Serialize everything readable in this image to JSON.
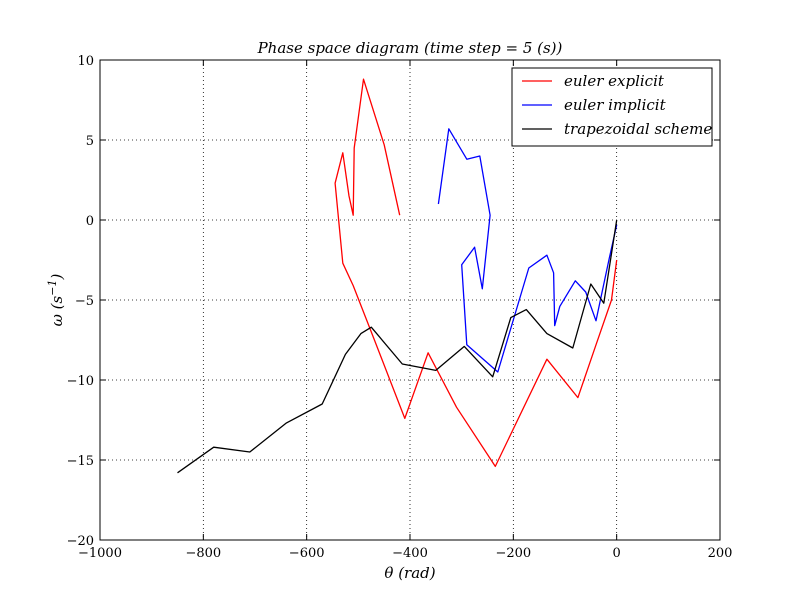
{
  "chart_data": {
    "type": "line",
    "title": "Phase space diagram (time step = 5 (s))",
    "xlabel": "θ (rad)",
    "ylabel": "ω (s",
    "ylabel_superscript": "−1",
    "ylabel_suffix": ")",
    "xlim": [
      -1000,
      200
    ],
    "ylim": [
      -20,
      10
    ],
    "xticks": [
      -1000,
      -800,
      -600,
      -400,
      -200,
      0,
      200
    ],
    "xtick_labels": [
      "−1000",
      "−800",
      "−600",
      "−400",
      "−200",
      "0",
      "200"
    ],
    "yticks": [
      -20,
      -15,
      -10,
      -5,
      0,
      5,
      10
    ],
    "ytick_labels": [
      "−20",
      "−15",
      "−10",
      "−5",
      "0",
      "5",
      "10"
    ],
    "grid": true,
    "legend_position": "top-right",
    "series": [
      {
        "name": "euler explicit",
        "color": "#ff0000",
        "x": [
          0,
          -10,
          -40,
          -75,
          -135,
          -235,
          -310,
          -365,
          -410,
          -470,
          -510,
          -530,
          -545,
          -530,
          -518,
          -510,
          -508,
          -490,
          -450,
          -420
        ],
        "y": [
          -2.5,
          -5.0,
          -7.8,
          -11.1,
          -8.7,
          -15.4,
          -11.7,
          -8.3,
          -12.4,
          -7.4,
          -4.1,
          -2.7,
          2.3,
          4.2,
          1.5,
          0.3,
          4.5,
          8.8,
          4.7,
          0.3
        ]
      },
      {
        "name": "euler implicit",
        "color": "#0000ff",
        "x": [
          0,
          -15,
          -40,
          -60,
          -80,
          -110,
          -120,
          -122,
          -135,
          -170,
          -230,
          -290,
          -300,
          -275,
          -260,
          -245,
          -265,
          -290,
          -325,
          -345
        ],
        "y": [
          -0.3,
          -2.5,
          -6.3,
          -4.5,
          -3.8,
          -5.4,
          -6.6,
          -3.3,
          -2.2,
          -3.0,
          -9.5,
          -7.8,
          -2.8,
          -1.7,
          -4.3,
          0.3,
          4.0,
          3.8,
          5.7,
          1.0
        ]
      },
      {
        "name": "trapezoidal scheme",
        "color": "#000000",
        "x": [
          0,
          -25,
          -50,
          -85,
          -135,
          -175,
          -205,
          -240,
          -295,
          -350,
          -415,
          -475,
          -495,
          -525,
          -570,
          -640,
          -710,
          -780,
          -850
        ],
        "y": [
          0.0,
          -5.2,
          -4.0,
          -8.0,
          -7.1,
          -5.6,
          -6.1,
          -9.8,
          -7.9,
          -9.4,
          -9.0,
          -6.7,
          -7.1,
          -8.4,
          -11.5,
          -12.7,
          -14.5,
          -14.2,
          -15.8
        ]
      }
    ]
  }
}
